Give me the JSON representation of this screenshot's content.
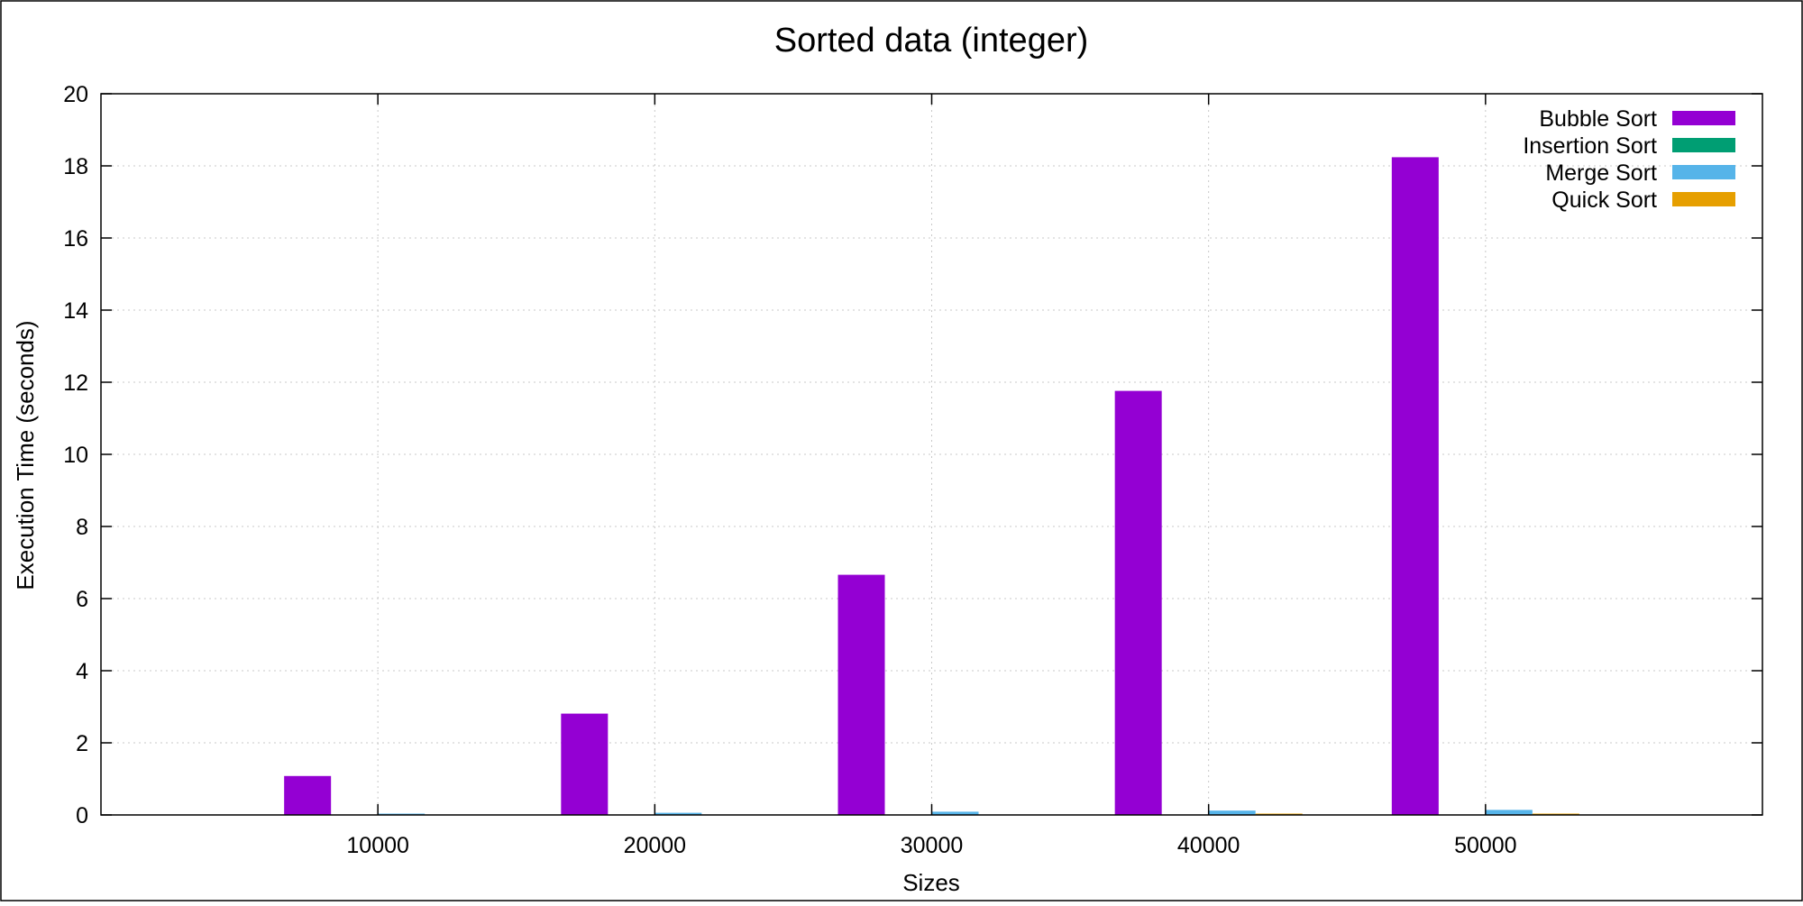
{
  "chart_data": {
    "type": "bar",
    "title": "Sorted data (integer)",
    "xlabel": "Sizes",
    "ylabel": "Execution Time (seconds)",
    "categories": [
      "10000",
      "20000",
      "30000",
      "40000",
      "50000"
    ],
    "ylim": [
      0,
      20
    ],
    "yticks": [
      "0",
      "2",
      "4",
      "6",
      "8",
      "10",
      "12",
      "14",
      "16",
      "18",
      "20"
    ],
    "grid": true,
    "legend_position": "top-right",
    "series": [
      {
        "name": "Bubble Sort",
        "color": "#9400D3",
        "values": [
          1.08,
          2.81,
          6.66,
          11.76,
          18.24
        ]
      },
      {
        "name": "Insertion Sort",
        "color": "#009E73",
        "values": [
          0.0,
          0.0,
          0.0,
          0.0,
          0.0
        ]
      },
      {
        "name": "Merge Sort",
        "color": "#56B4E9",
        "values": [
          0.03,
          0.06,
          0.09,
          0.12,
          0.14
        ]
      },
      {
        "name": "Quick Sort",
        "color": "#E69F00",
        "values": [
          0.0,
          0.0,
          0.0,
          0.01,
          0.01
        ]
      }
    ]
  }
}
